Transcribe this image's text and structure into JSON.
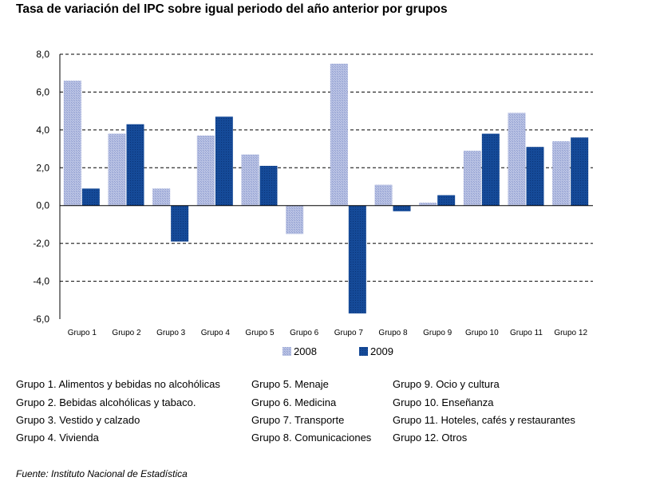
{
  "title": "Tasa de variación del IPC sobre igual periodo del año anterior por grupos",
  "source": "Fuente: Instituto Nacional de Estadística",
  "colors": {
    "s2008": "#aab4dc",
    "s2009": "#0f3f8c",
    "grid": "#000000"
  },
  "chart_data": {
    "type": "bar",
    "title": "Tasa de variación del IPC sobre igual periodo del año anterior por grupos",
    "categories": [
      "Grupo 1",
      "Grupo 2",
      "Grupo 3",
      "Grupo 4",
      "Grupo 5",
      "Grupo 6",
      "Grupo 7",
      "Grupo 8",
      "Grupo 9",
      "Grupo 10",
      "Grupo 11",
      "Grupo 12"
    ],
    "series": [
      {
        "name": "2008",
        "values": [
          6.6,
          3.8,
          0.9,
          3.7,
          2.7,
          -1.5,
          7.5,
          1.1,
          0.15,
          2.9,
          4.9,
          3.4
        ]
      },
      {
        "name": "2009",
        "values": [
          0.9,
          4.3,
          -1.9,
          4.7,
          2.1,
          0.0,
          -5.7,
          -0.3,
          0.55,
          3.8,
          3.1,
          3.6
        ]
      }
    ],
    "yticks": [
      8,
      6,
      4,
      2,
      0,
      -2,
      -4,
      -6
    ],
    "ytick_labels": [
      "8,0",
      "6,0",
      "4,0",
      "2,0",
      "0,0",
      "-2,0",
      "-4,0",
      "-6,0"
    ],
    "ylim": [
      -6,
      8
    ],
    "grid": "dashed horizontal",
    "legend_position": "bottom",
    "xlabel": "",
    "ylabel": ""
  },
  "legend": [
    "2008",
    "2009"
  ],
  "notes": {
    "col1": [
      "Grupo 1. Alimentos y bebidas no alcohólicas",
      "Grupo 2. Bebidas alcohólicas y  tabaco.",
      "Grupo 3. Vestido y calzado",
      "Grupo 4. Vivienda"
    ],
    "col2": [
      "Grupo 5. Menaje",
      "Grupo 6. Medicina",
      "Grupo 7. Transporte",
      "Grupo 8. Comunicaciones"
    ],
    "col3": [
      "Grupo 9. Ocio y cultura",
      "Grupo 10. Enseñanza",
      "Grupo 11. Hoteles, cafés y restaurantes",
      "Grupo 12. Otros"
    ]
  }
}
